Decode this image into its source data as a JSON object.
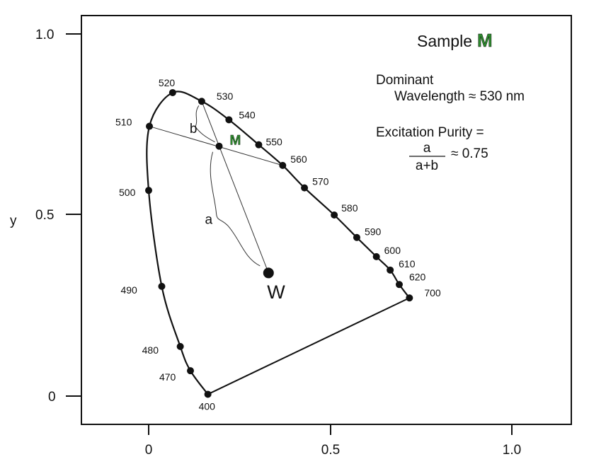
{
  "chart_data": {
    "type": "scatter",
    "title": "Sample",
    "title_marker": "M",
    "ylabel": "y",
    "xlabel": "",
    "xlim": [
      -0.18,
      1.18
    ],
    "ylim": [
      -0.08,
      1.05
    ],
    "x_ticks": [
      "0",
      "0.5",
      "1.0"
    ],
    "y_ticks": [
      "0",
      "0.5",
      "1.0"
    ],
    "grid": false,
    "spectral_locus": [
      {
        "label": "400",
        "x": 0.163,
        "y": 0.005
      },
      {
        "label": "470",
        "x": 0.115,
        "y": 0.07
      },
      {
        "label": "480",
        "x": 0.087,
        "y": 0.137
      },
      {
        "label": "490",
        "x": 0.036,
        "y": 0.303
      },
      {
        "label": "500",
        "x": 0.0,
        "y": 0.568
      },
      {
        "label": "510",
        "x": 0.002,
        "y": 0.745
      },
      {
        "label": "520",
        "x": 0.066,
        "y": 0.838
      },
      {
        "label": "530",
        "x": 0.146,
        "y": 0.814
      },
      {
        "label": "540",
        "x": 0.221,
        "y": 0.763
      },
      {
        "label": "550",
        "x": 0.303,
        "y": 0.694
      },
      {
        "label": "560",
        "x": 0.369,
        "y": 0.637
      },
      {
        "label": "570",
        "x": 0.429,
        "y": 0.575
      },
      {
        "label": "580",
        "x": 0.511,
        "y": 0.5
      },
      {
        "label": "590",
        "x": 0.573,
        "y": 0.438
      },
      {
        "label": "600",
        "x": 0.627,
        "y": 0.385
      },
      {
        "label": "610",
        "x": 0.665,
        "y": 0.348
      },
      {
        "label": "620",
        "x": 0.69,
        "y": 0.308
      },
      {
        "label": "700",
        "x": 0.718,
        "y": 0.271
      }
    ],
    "white_point": {
      "label": "W",
      "x": 0.33,
      "y": 0.34
    },
    "sample_point": {
      "label": "M",
      "x": 0.194,
      "y": 0.69
    },
    "brace_labels": {
      "a": "a",
      "b": "b"
    }
  },
  "annotations": {
    "dominant_line1": "Dominant",
    "dominant_line2": "Wavelength ≈ 530 nm",
    "purity_label": "Excitation Purity =",
    "fraction_num": "a",
    "fraction_den": "a+b",
    "purity_value": "≈ 0.75"
  },
  "colors": {
    "accent": "#2e8b2e",
    "ink": "#111111"
  }
}
